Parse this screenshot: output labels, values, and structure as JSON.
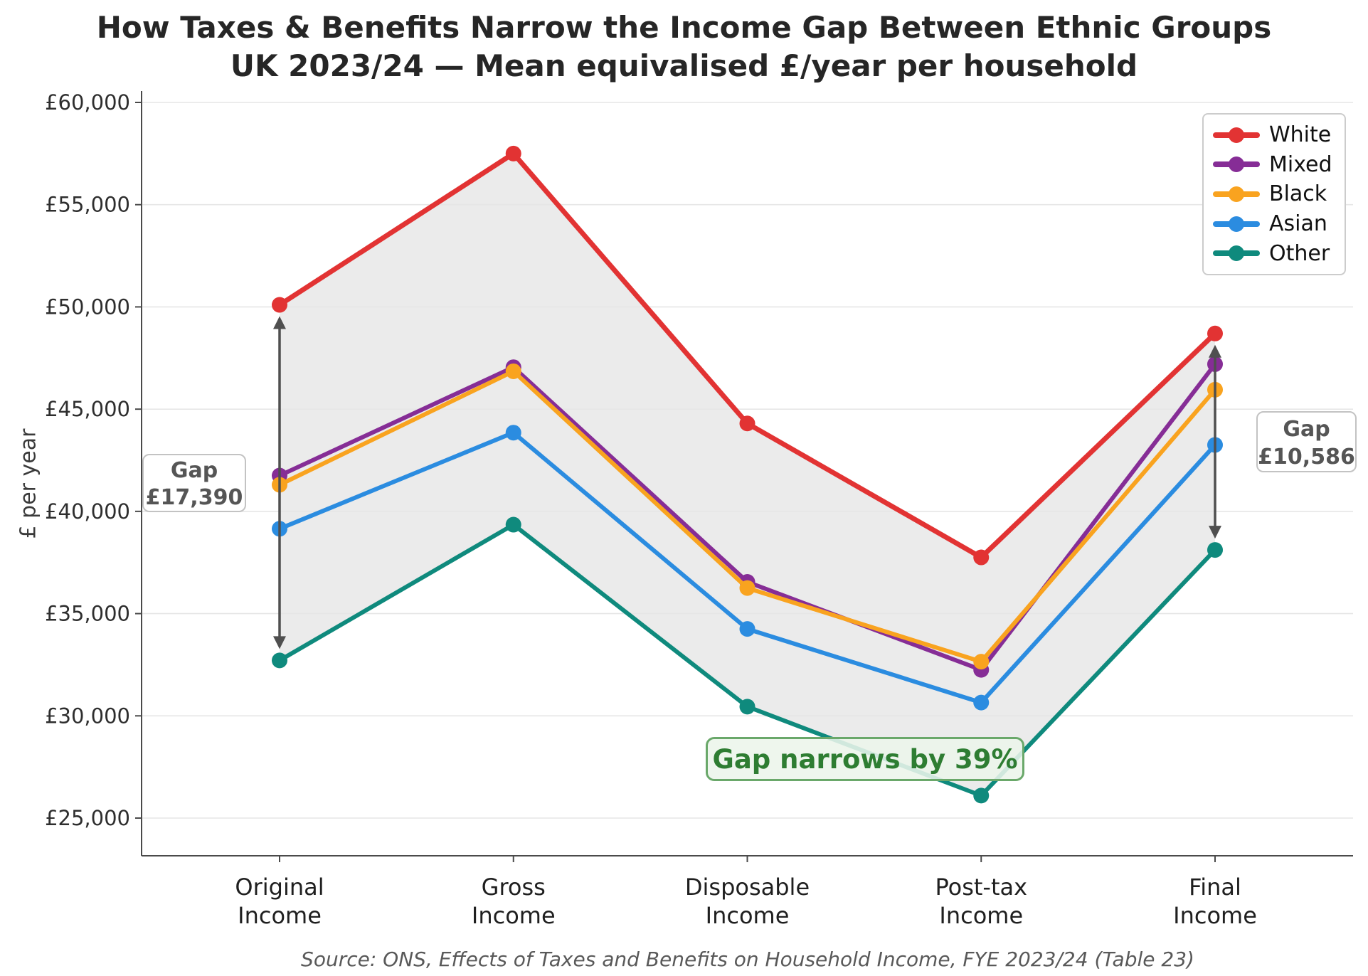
{
  "title": {
    "line1": "How Taxes & Benefits Narrow the Income Gap Between Ethnic Groups",
    "line2": "UK 2023/24 — Mean equivalised £/year per household"
  },
  "y_axis_label": "£ per year",
  "source_note": "Source: ONS, Effects of Taxes and Benefits on Household Income, FYE 2023/24 (Table 23)",
  "annotations": {
    "gap_left": {
      "title": "Gap",
      "value": "£17,390"
    },
    "gap_right": {
      "title": "Gap",
      "value": "£10,586"
    },
    "gap_narrows": "Gap narrows by 39%"
  },
  "chart_data": {
    "type": "line",
    "title": "How Taxes & Benefits Narrow the Income Gap Between Ethnic Groups — UK 2023/24, Mean equivalised £/year per household",
    "xlabel": "",
    "ylabel": "£ per year",
    "categories": [
      "Original Income",
      "Gross Income",
      "Disposable Income",
      "Post-tax Income",
      "Final Income"
    ],
    "series": [
      {
        "name": "White",
        "color": "#e23333",
        "values": [
          50100,
          57500,
          44300,
          37750,
          48700
        ]
      },
      {
        "name": "Mixed",
        "color": "#862d96",
        "values": [
          41750,
          47050,
          36550,
          32250,
          47200
        ]
      },
      {
        "name": "Black",
        "color": "#f9a31f",
        "values": [
          41300,
          46850,
          36250,
          32650,
          45950
        ]
      },
      {
        "name": "Asian",
        "color": "#2b8ce0",
        "values": [
          39150,
          43850,
          34250,
          30650,
          43250
        ]
      },
      {
        "name": "Other",
        "color": "#0f8a7d",
        "values": [
          32710,
          39350,
          30450,
          26100,
          38114
        ]
      }
    ],
    "y_ticks": [
      {
        "value": 25000,
        "label": "£25,000"
      },
      {
        "value": 30000,
        "label": "£30,000"
      },
      {
        "value": 35000,
        "label": "£35,000"
      },
      {
        "value": 40000,
        "label": "£40,000"
      },
      {
        "value": 45000,
        "label": "£45,000"
      },
      {
        "value": 50000,
        "label": "£50,000"
      },
      {
        "value": 55000,
        "label": "£55,000"
      },
      {
        "value": 60000,
        "label": "£60,000"
      }
    ],
    "ylim": [
      23150,
      60550
    ],
    "grid": true,
    "legend_position": "top-right",
    "band_between": [
      "White",
      "Other"
    ],
    "gap_arrows": [
      {
        "category_index": 0,
        "from_series": "White",
        "to_series": "Other",
        "gap_label": "£17,390"
      },
      {
        "category_index": 4,
        "from_series": "White",
        "to_series": "Other",
        "gap_label": "£10,586"
      }
    ],
    "colors": {
      "grid": "#e6e6e6",
      "band_fill": "#ebebeb",
      "spine": "#4a4a4a",
      "arrow": "#4f4f4f",
      "tick_label": "#2e2e2e"
    }
  }
}
